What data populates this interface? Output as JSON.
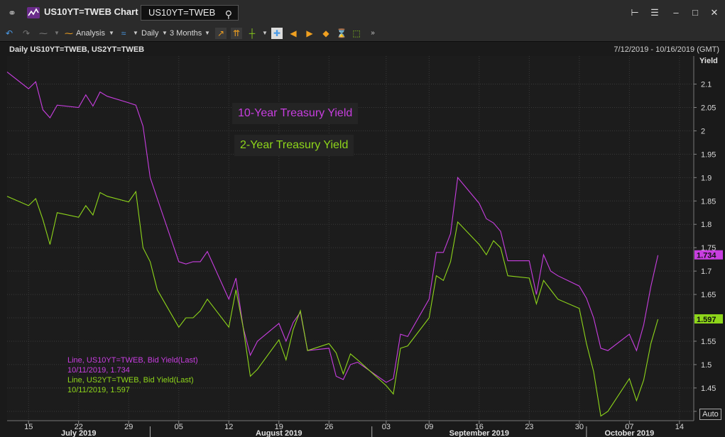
{
  "window": {
    "title": "US10YT=TWEB Chart",
    "ric_input": "US10YT=TWEB"
  },
  "toolbar": {
    "analysis_label": "Analysis",
    "interval_label": "Daily",
    "period_label": "3 Months"
  },
  "chart_header": {
    "title": "Daily US10YT=TWEB, US2YT=TWEB",
    "date_range": "7/12/2019 - 10/16/2019 (GMT)",
    "y_axis_title": "Yield",
    "auto_label": "Auto"
  },
  "legend": {
    "ten_year": "10-Year Treasury Yield",
    "two_year": "2-Year Treasury Yield"
  },
  "info": {
    "line1": "Line, US10YT=TWEB, Bid Yield(Last)",
    "line2": "10/11/2019, 1.734",
    "line3": "Line, US2YT=TWEB, Bid Yield(Last)",
    "line4": "10/11/2019, 1.597"
  },
  "colors": {
    "ten_year": "#c83ee0",
    "two_year": "#8ed61a",
    "background": "#1a1a1a",
    "grid": "#3a3a3a"
  },
  "chart_data": {
    "type": "line",
    "title": "Daily US10YT=TWEB, US2YT=TWEB",
    "ylabel": "Yield",
    "ylim": [
      1.38,
      2.16
    ],
    "xlim": [
      "2019-07-12",
      "2019-10-16"
    ],
    "x_ticks": [
      {
        "date": "2019-07-15",
        "label": "15"
      },
      {
        "date": "2019-07-22",
        "label": "22"
      },
      {
        "date": "2019-07-29",
        "label": "29"
      },
      {
        "date": "2019-08-05",
        "label": "05"
      },
      {
        "date": "2019-08-12",
        "label": "12"
      },
      {
        "date": "2019-08-19",
        "label": "19"
      },
      {
        "date": "2019-08-26",
        "label": "26"
      },
      {
        "date": "2019-09-03",
        "label": "03"
      },
      {
        "date": "2019-09-09",
        "label": "09"
      },
      {
        "date": "2019-09-16",
        "label": "16"
      },
      {
        "date": "2019-09-23",
        "label": "23"
      },
      {
        "date": "2019-09-30",
        "label": "30"
      },
      {
        "date": "2019-10-07",
        "label": "07"
      },
      {
        "date": "2019-10-14",
        "label": "14"
      }
    ],
    "months": [
      {
        "date": "2019-07-22",
        "label": "July 2019"
      },
      {
        "date": "2019-08-19",
        "label": "August 2019"
      },
      {
        "date": "2019-09-16",
        "label": "September 2019"
      },
      {
        "date": "2019-10-07",
        "label": "October 2019"
      }
    ],
    "y_ticks": [
      1.4,
      1.45,
      1.5,
      1.55,
      1.6,
      1.65,
      1.7,
      1.75,
      1.8,
      1.85,
      1.9,
      1.95,
      2,
      2.05,
      2.1
    ],
    "y_tick_labels": [
      "1.4",
      "1.45",
      "1.5",
      "1.55",
      "1.6",
      "1.65",
      "1.7",
      "1.75",
      "1.8",
      "1.85",
      "1.9",
      "1.95",
      "2",
      "2.05",
      "2.1"
    ],
    "last_labels": [
      {
        "series": 0,
        "value": 1.734,
        "label": "1.734"
      },
      {
        "series": 1,
        "value": 1.597,
        "label": "1.597"
      }
    ],
    "series": [
      {
        "color": "#c83ee0",
        "points": [
          [
            "2019-07-12",
            2.126
          ],
          [
            "2019-07-15",
            2.09
          ],
          [
            "2019-07-16",
            2.105
          ],
          [
            "2019-07-17",
            2.045
          ],
          [
            "2019-07-18",
            2.028
          ],
          [
            "2019-07-19",
            2.055
          ],
          [
            "2019-07-22",
            2.05
          ],
          [
            "2019-07-23",
            2.077
          ],
          [
            "2019-07-24",
            2.053
          ],
          [
            "2019-07-25",
            2.083
          ],
          [
            "2019-07-26",
            2.074
          ],
          [
            "2019-07-29",
            2.06
          ],
          [
            "2019-07-30",
            2.055
          ],
          [
            "2019-07-31",
            2.01
          ],
          [
            "2019-08-01",
            1.9
          ],
          [
            "2019-08-02",
            1.855
          ],
          [
            "2019-08-05",
            1.72
          ],
          [
            "2019-08-06",
            1.715
          ],
          [
            "2019-08-07",
            1.72
          ],
          [
            "2019-08-08",
            1.72
          ],
          [
            "2019-08-09",
            1.742
          ],
          [
            "2019-08-12",
            1.64
          ],
          [
            "2019-08-13",
            1.685
          ],
          [
            "2019-08-14",
            1.58
          ],
          [
            "2019-08-15",
            1.52
          ],
          [
            "2019-08-16",
            1.55
          ],
          [
            "2019-08-19",
            1.588
          ],
          [
            "2019-08-20",
            1.55
          ],
          [
            "2019-08-21",
            1.59
          ],
          [
            "2019-08-22",
            1.612
          ],
          [
            "2019-08-23",
            1.53
          ],
          [
            "2019-08-26",
            1.535
          ],
          [
            "2019-08-27",
            1.475
          ],
          [
            "2019-08-28",
            1.468
          ],
          [
            "2019-08-29",
            1.5
          ],
          [
            "2019-08-30",
            1.505
          ],
          [
            "2019-09-03",
            1.462
          ],
          [
            "2019-09-04",
            1.47
          ],
          [
            "2019-09-05",
            1.565
          ],
          [
            "2019-09-06",
            1.56
          ],
          [
            "2019-09-09",
            1.64
          ],
          [
            "2019-09-10",
            1.74
          ],
          [
            "2019-09-11",
            1.74
          ],
          [
            "2019-09-12",
            1.78
          ],
          [
            "2019-09-13",
            1.9
          ],
          [
            "2019-09-16",
            1.845
          ],
          [
            "2019-09-17",
            1.812
          ],
          [
            "2019-09-18",
            1.803
          ],
          [
            "2019-09-19",
            1.785
          ],
          [
            "2019-09-20",
            1.722
          ],
          [
            "2019-09-23",
            1.722
          ],
          [
            "2019-09-24",
            1.65
          ],
          [
            "2019-09-25",
            1.735
          ],
          [
            "2019-09-26",
            1.7
          ],
          [
            "2019-09-27",
            1.69
          ],
          [
            "2019-09-30",
            1.668
          ],
          [
            "2019-10-01",
            1.642
          ],
          [
            "2019-10-02",
            1.6
          ],
          [
            "2019-10-03",
            1.535
          ],
          [
            "2019-10-04",
            1.53
          ],
          [
            "2019-10-07",
            1.565
          ],
          [
            "2019-10-08",
            1.53
          ],
          [
            "2019-10-09",
            1.585
          ],
          [
            "2019-10-10",
            1.667
          ],
          [
            "2019-10-11",
            1.734
          ]
        ]
      },
      {
        "color": "#8ed61a",
        "points": [
          [
            "2019-07-12",
            1.86
          ],
          [
            "2019-07-15",
            1.84
          ],
          [
            "2019-07-16",
            1.855
          ],
          [
            "2019-07-17",
            1.81
          ],
          [
            "2019-07-18",
            1.757
          ],
          [
            "2019-07-19",
            1.825
          ],
          [
            "2019-07-22",
            1.815
          ],
          [
            "2019-07-23",
            1.84
          ],
          [
            "2019-07-24",
            1.82
          ],
          [
            "2019-07-25",
            1.868
          ],
          [
            "2019-07-26",
            1.86
          ],
          [
            "2019-07-29",
            1.848
          ],
          [
            "2019-07-30",
            1.87
          ],
          [
            "2019-07-31",
            1.75
          ],
          [
            "2019-08-01",
            1.72
          ],
          [
            "2019-08-02",
            1.66
          ],
          [
            "2019-08-05",
            1.58
          ],
          [
            "2019-08-06",
            1.6
          ],
          [
            "2019-08-07",
            1.6
          ],
          [
            "2019-08-08",
            1.615
          ],
          [
            "2019-08-09",
            1.64
          ],
          [
            "2019-08-12",
            1.58
          ],
          [
            "2019-08-13",
            1.66
          ],
          [
            "2019-08-14",
            1.58
          ],
          [
            "2019-08-15",
            1.475
          ],
          [
            "2019-08-16",
            1.49
          ],
          [
            "2019-08-19",
            1.553
          ],
          [
            "2019-08-20",
            1.51
          ],
          [
            "2019-08-21",
            1.575
          ],
          [
            "2019-08-22",
            1.615
          ],
          [
            "2019-08-23",
            1.53
          ],
          [
            "2019-08-26",
            1.545
          ],
          [
            "2019-08-27",
            1.525
          ],
          [
            "2019-08-28",
            1.48
          ],
          [
            "2019-08-29",
            1.523
          ],
          [
            "2019-08-30",
            1.51
          ],
          [
            "2019-09-03",
            1.455
          ],
          [
            "2019-09-04",
            1.437
          ],
          [
            "2019-09-05",
            1.535
          ],
          [
            "2019-09-06",
            1.54
          ],
          [
            "2019-09-09",
            1.6
          ],
          [
            "2019-09-10",
            1.69
          ],
          [
            "2019-09-11",
            1.68
          ],
          [
            "2019-09-12",
            1.72
          ],
          [
            "2019-09-13",
            1.805
          ],
          [
            "2019-09-16",
            1.757
          ],
          [
            "2019-09-17",
            1.735
          ],
          [
            "2019-09-18",
            1.765
          ],
          [
            "2019-09-19",
            1.75
          ],
          [
            "2019-09-20",
            1.69
          ],
          [
            "2019-09-23",
            1.685
          ],
          [
            "2019-09-24",
            1.63
          ],
          [
            "2019-09-25",
            1.68
          ],
          [
            "2019-09-26",
            1.66
          ],
          [
            "2019-09-27",
            1.64
          ],
          [
            "2019-09-30",
            1.62
          ],
          [
            "2019-10-01",
            1.545
          ],
          [
            "2019-10-02",
            1.485
          ],
          [
            "2019-10-03",
            1.39
          ],
          [
            "2019-10-04",
            1.4
          ],
          [
            "2019-10-07",
            1.47
          ],
          [
            "2019-10-08",
            1.423
          ],
          [
            "2019-10-09",
            1.467
          ],
          [
            "2019-10-10",
            1.545
          ],
          [
            "2019-10-11",
            1.597
          ]
        ]
      }
    ]
  }
}
